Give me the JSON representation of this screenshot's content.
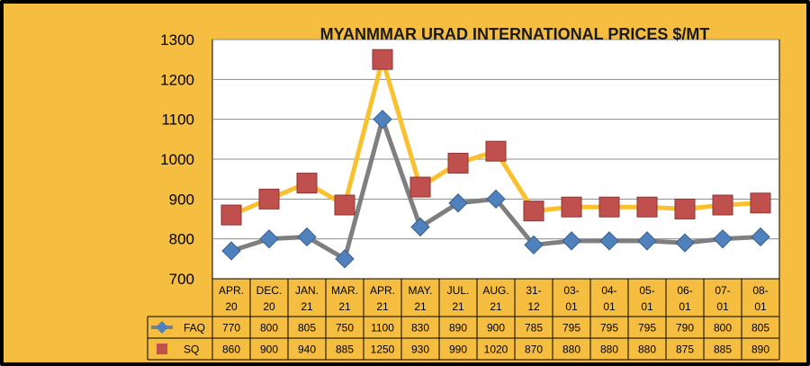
{
  "chart_data": {
    "type": "line",
    "title": "MYANMMAR URAD INTERNATIONAL PRICES $/MT",
    "categories": [
      [
        "APR.",
        "20"
      ],
      [
        "DEC.",
        "20"
      ],
      [
        "JAN.",
        "21"
      ],
      [
        "MAR.",
        "21"
      ],
      [
        "APR.",
        "21"
      ],
      [
        "MAY.",
        "21"
      ],
      [
        "JUL.",
        "21"
      ],
      [
        "AUG.",
        "21"
      ],
      [
        "31-",
        "12"
      ],
      [
        "03-",
        "01"
      ],
      [
        "04-",
        "01"
      ],
      [
        "05-",
        "01"
      ],
      [
        "06-",
        "01"
      ],
      [
        "07-",
        "01"
      ],
      [
        "08-",
        "01"
      ]
    ],
    "series": [
      {
        "name": "FAQ",
        "values": [
          770,
          800,
          805,
          750,
          1100,
          830,
          890,
          900,
          785,
          795,
          795,
          795,
          790,
          800,
          805
        ],
        "line_color": "#7F7F7F",
        "marker": "diamond",
        "marker_color": "#4F81BD"
      },
      {
        "name": "SQ",
        "values": [
          860,
          900,
          940,
          885,
          1250,
          930,
          990,
          1020,
          870,
          880,
          880,
          880,
          875,
          885,
          890
        ],
        "line_color": "#FBC02D",
        "marker": "square",
        "marker_color": "#C0504D"
      }
    ],
    "ylim": [
      700,
      1300
    ],
    "yticks": [
      "700",
      "800",
      "900",
      "1000",
      "1100",
      "1200",
      "1300"
    ],
    "grid": true,
    "data_table": true,
    "background": "#F5BE41",
    "plot_background": "#FFFFFF"
  }
}
